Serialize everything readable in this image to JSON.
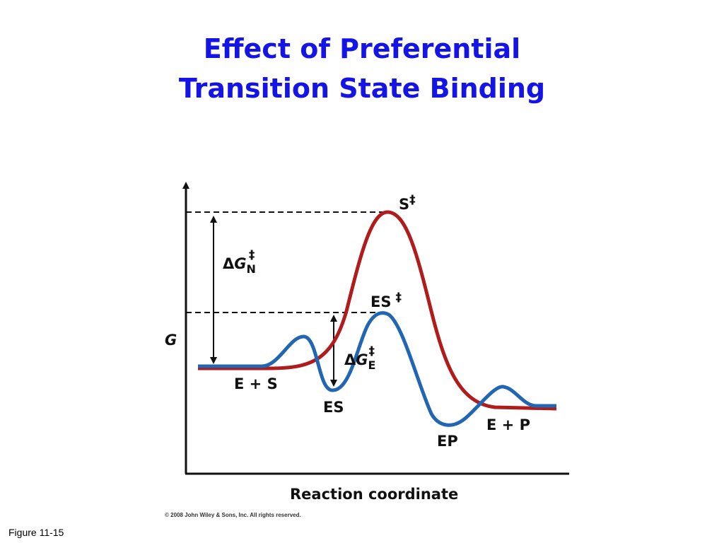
{
  "header": {
    "title_lines": [
      "Effect of Preferential",
      "Transition State Binding"
    ]
  },
  "diagram": {
    "y_axis_label": "G",
    "x_axis_label": "Reaction coordinate",
    "uncatalyzed_peak": {
      "base": "S",
      "superscript": "‡"
    },
    "catalyzed_peak": {
      "base": "ES",
      "superscript": "‡"
    },
    "delta_g_n": {
      "symbol": "Δ",
      "variable": "G",
      "subscript": "N",
      "superscript": "‡"
    },
    "delta_g_e": {
      "symbol": "Δ",
      "variable": "G",
      "subscript": "E",
      "superscript": "‡"
    },
    "states": [
      "E + S",
      "ES",
      "EP",
      "E + P"
    ],
    "copyright": "© 2008 John Wiley & Sons, Inc. All rights reserved."
  },
  "footer": {
    "figure_label": "Figure 11-15"
  }
}
